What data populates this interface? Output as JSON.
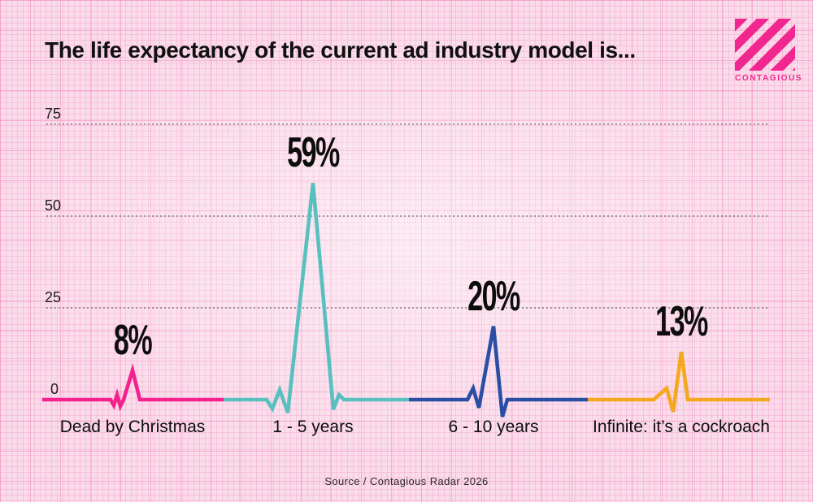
{
  "header": {
    "logo_text": "CONTAGIOUS"
  },
  "footer": {
    "source": "Source / Contagious Radar 2026"
  },
  "chart_data": {
    "type": "line",
    "subtype": "ecg-heartbeat-pulse",
    "title": "The life expectancy of the current ad industry model is...",
    "categories": [
      "Dead by Christmas",
      "1 - 5 years",
      "6 - 10 years",
      "Infinite: it’s a cockroach"
    ],
    "values": [
      8,
      59,
      20,
      13
    ],
    "value_labels": [
      "8%",
      "59%",
      "20%",
      "13%"
    ],
    "series_colors": [
      "#f5218c",
      "#58c0bf",
      "#2b4ea5",
      "#f5a71e"
    ],
    "yticks": [
      0,
      25,
      50,
      75
    ],
    "ytick_labels": [
      "0",
      "25",
      "50",
      "75"
    ],
    "ylim": [
      0,
      80
    ],
    "xlabel": "",
    "ylabel": "",
    "grid": "horizontal-dotted",
    "legend": "none"
  },
  "colors": {
    "background_pink": "#fadbe9",
    "brand_magenta": "#f1268f",
    "grid_dot": "#6b6b6b",
    "text": "#101010"
  }
}
